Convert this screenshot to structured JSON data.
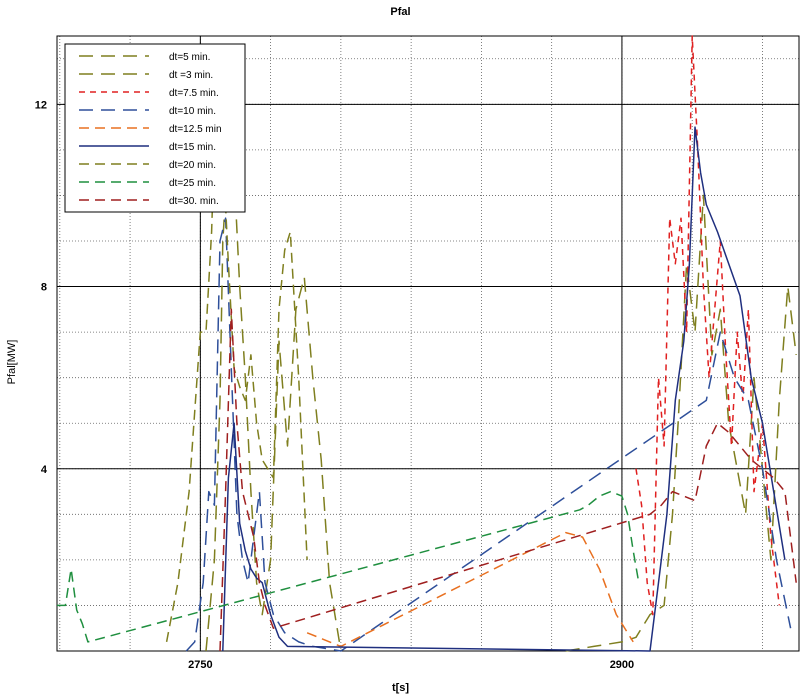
{
  "chart_data": {
    "type": "line",
    "title": "Pfal",
    "xlabel": "t[s]",
    "ylabel": "Pfal[MW]",
    "xlim": [
      2699,
      2963
    ],
    "ylim": [
      0,
      13.5
    ],
    "x_ticks": [
      "2750",
      "2900"
    ],
    "x_tick_values": [
      2750,
      2900
    ],
    "y_ticks": [
      "4",
      "8",
      "12"
    ],
    "y_tick_values": [
      4,
      8,
      12
    ],
    "grid": true,
    "legend_position": "top-left",
    "series": [
      {
        "name": "dt=5 min.",
        "color": "#7f7f1f",
        "dash": "long",
        "x": [
          2752,
          2755,
          2757,
          2758,
          2760,
          2762,
          2764,
          2766,
          2768,
          2770,
          2772,
          2775,
          2778,
          2781,
          2784,
          2787,
          2790,
          2793,
          2796,
          2800
        ],
        "y": [
          0,
          2.0,
          5.5,
          9.0,
          11.0,
          10.5,
          8.0,
          6.0,
          3.5,
          1.5,
          0.8,
          2.0,
          6.8,
          4.5,
          7.5,
          8.2,
          6.0,
          4.2,
          1.5,
          0
        ]
      },
      {
        "name": "dt =3 min.",
        "color": "#7f7f1f",
        "dash": "long",
        "x": [
          2880,
          2890,
          2900,
          2905,
          2910,
          2915,
          2918,
          2920,
          2923,
          2926,
          2929,
          2932,
          2935,
          2938,
          2941,
          2944,
          2947,
          2950,
          2953,
          2956,
          2959,
          2962
        ],
        "y": [
          0,
          0.1,
          0.2,
          0.3,
          0.8,
          1.0,
          3.0,
          5.0,
          8.5,
          7.0,
          10.0,
          6.5,
          7.5,
          5.0,
          4.0,
          3.0,
          6.0,
          4.0,
          2.0,
          5.5,
          8.0,
          6.5
        ]
      },
      {
        "name": "dt=7.5 min.",
        "color": "#e02020",
        "dash": "short",
        "x": [
          2905,
          2907,
          2909,
          2911,
          2913,
          2915,
          2917,
          2919,
          2921,
          2923,
          2925,
          2927,
          2929,
          2931,
          2933,
          2935,
          2937,
          2939,
          2941,
          2943,
          2945,
          2947,
          2950,
          2953,
          2956
        ],
        "y": [
          4.0,
          3.2,
          1.5,
          0.8,
          6.0,
          4.5,
          9.5,
          8.5,
          9.5,
          7.0,
          13.5,
          11.0,
          8.0,
          6.0,
          7.5,
          9.0,
          6.5,
          4.5,
          7.0,
          5.5,
          7.5,
          3.5,
          5.0,
          2.5,
          1.0
        ]
      },
      {
        "name": "dt=10 min.",
        "color": "#2e4f9a",
        "dash": "long",
        "x": [
          2745,
          2748,
          2751,
          2753,
          2755,
          2757,
          2759,
          2761,
          2763,
          2765,
          2767,
          2769,
          2771,
          2773,
          2776,
          2780,
          2785,
          2790,
          2800,
          2930,
          2935,
          2940,
          2945,
          2950,
          2955,
          2960
        ],
        "y": [
          0,
          0.2,
          1.5,
          3.5,
          3.2,
          9.0,
          9.5,
          6.2,
          3.0,
          2.0,
          1.5,
          2.5,
          3.5,
          1.5,
          0.8,
          0.4,
          0.2,
          0.1,
          0,
          5.5,
          7.0,
          6.0,
          5.5,
          4.0,
          2.0,
          0.5
        ]
      },
      {
        "name": "dt=12.5 min",
        "color": "#e87020",
        "dash": "medium",
        "x": [
          2788,
          2792,
          2796,
          2800,
          2880,
          2886,
          2892,
          2898,
          2904
        ],
        "y": [
          0.4,
          0.3,
          0.2,
          0.1,
          2.6,
          2.5,
          1.8,
          0.8,
          0.2
        ]
      },
      {
        "name": "dt=15 min.",
        "color": "#1f2f7f",
        "dash": "solid",
        "x": [
          2758,
          2760,
          2762,
          2764,
          2766,
          2768,
          2770,
          2772,
          2775,
          2778,
          2781,
          2910,
          2913,
          2916,
          2919,
          2922,
          2924,
          2926,
          2928,
          2930,
          2934,
          2938,
          2942,
          2946,
          2950,
          2954,
          2958
        ],
        "y": [
          0,
          3.8,
          5.0,
          2.8,
          2.2,
          1.8,
          1.6,
          1.5,
          0.8,
          0.3,
          0.1,
          0,
          1.5,
          3.0,
          5.5,
          6.8,
          8.5,
          11.5,
          10.5,
          9.8,
          9.2,
          8.5,
          7.8,
          6.0,
          5.0,
          3.5,
          2.0
        ]
      },
      {
        "name": "dt=20 min.",
        "color": "#7f7f1f",
        "dash": "medium",
        "x": [
          2738,
          2742,
          2746,
          2750,
          2752,
          2754,
          2756,
          2758,
          2760,
          2762,
          2764,
          2766,
          2768,
          2770,
          2772,
          2774,
          2776,
          2778,
          2780,
          2782,
          2785,
          2788
        ],
        "y": [
          0.2,
          1.5,
          3.5,
          7.0,
          7.0,
          9.2,
          13.0,
          11.0,
          8.5,
          6.2,
          5.8,
          5.5,
          6.5,
          5.0,
          4.2,
          4.0,
          3.8,
          7.5,
          8.8,
          9.2,
          6.0,
          2.0
        ]
      },
      {
        "name": "dt=25 min.",
        "color": "#1f8f3f",
        "dash": "medium",
        "x": [
          2699,
          2702,
          2704,
          2706,
          2708,
          2710,
          2885,
          2888,
          2892,
          2896,
          2900,
          2902,
          2904,
          2906
        ],
        "y": [
          1.0,
          1.0,
          1.8,
          0.9,
          0.6,
          0.2,
          3.1,
          3.2,
          3.4,
          3.5,
          3.4,
          3.0,
          2.2,
          1.5
        ]
      },
      {
        "name": "dt=30. min.",
        "color": "#9f1f1f",
        "dash": "medium",
        "x": [
          2757,
          2759,
          2761,
          2763,
          2765,
          2767,
          2769,
          2771,
          2773,
          2776,
          2910,
          2914,
          2918,
          2922,
          2926,
          2930,
          2934,
          2938,
          2942,
          2946,
          2950,
          2954,
          2958,
          2962
        ],
        "y": [
          0,
          3.5,
          7.5,
          5.0,
          3.5,
          3.0,
          2.5,
          1.5,
          1.0,
          0.5,
          3.0,
          3.2,
          3.5,
          3.4,
          3.3,
          4.5,
          5.0,
          4.8,
          4.5,
          4.2,
          4.0,
          3.8,
          3.5,
          1.5
        ]
      }
    ]
  }
}
